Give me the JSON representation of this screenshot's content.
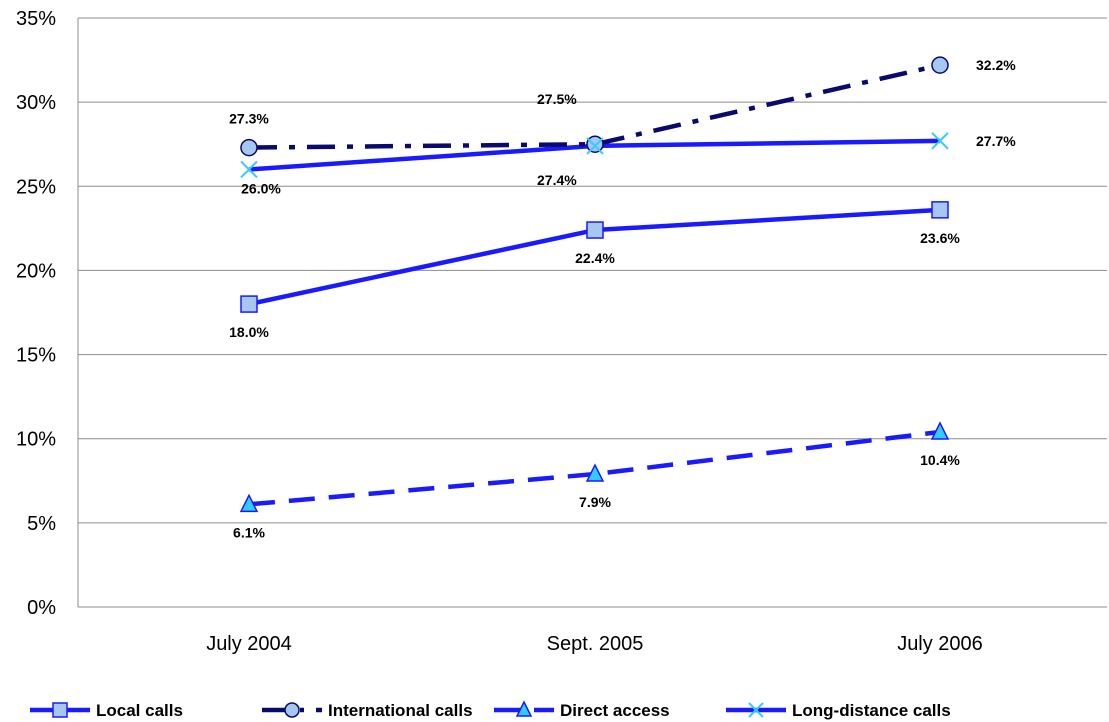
{
  "chart_data": {
    "type": "line",
    "categories": [
      "July 2004",
      "Sept. 2005",
      "July 2006"
    ],
    "ylim": [
      0,
      35
    ],
    "yticks": [
      "0%",
      "5%",
      "10%",
      "15%",
      "20%",
      "25%",
      "30%",
      "35%"
    ],
    "grid": true,
    "legend_position": "bottom",
    "series": [
      {
        "name": "Local calls",
        "values": [
          18.0,
          22.4,
          23.6
        ],
        "labels": [
          "18.0%",
          "22.4%",
          "23.6%"
        ],
        "color": "#1a1aff",
        "marker": "square",
        "marker_fill": "#a6c8f0",
        "line_style": "solid"
      },
      {
        "name": "International calls",
        "values": [
          27.3,
          27.5,
          32.2
        ],
        "labels": [
          "27.3%",
          "27.5%",
          "32.2%"
        ],
        "color": "#0a0a6e",
        "marker": "circle",
        "marker_fill": "#a6c8f0",
        "line_style": "dash-dot"
      },
      {
        "name": "Direct access",
        "values": [
          6.1,
          7.9,
          10.4
        ],
        "labels": [
          "6.1%",
          "7.9%",
          "10.4%"
        ],
        "color": "#1a1aff",
        "marker": "triangle",
        "marker_fill": "#33ccff",
        "line_style": "dashed"
      },
      {
        "name": "Long-distance calls",
        "values": [
          26.0,
          27.4,
          27.7
        ],
        "labels": [
          "26.0%",
          "27.4%",
          "27.7%"
        ],
        "color": "#1a1aff",
        "marker": "x",
        "marker_fill": "#33ccff",
        "line_style": "solid"
      }
    ]
  }
}
